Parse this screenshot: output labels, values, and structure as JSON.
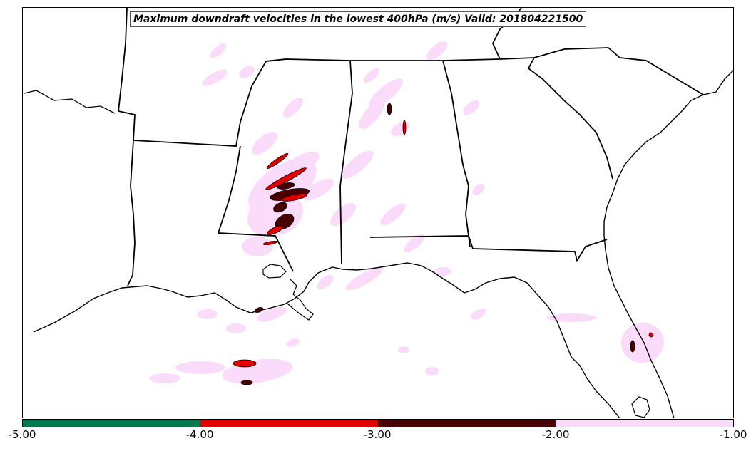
{
  "title": "Maximum downdraft velocities in the lowest 400hPa (m/s) Valid: 201804221500",
  "colorbar": {
    "ticks": [
      "-5.00",
      "-4.00",
      "-3.00",
      "-2.00",
      "-1.00"
    ],
    "bins": [
      {
        "range": [
          -5.0,
          -4.0
        ],
        "color": "#007a4d"
      },
      {
        "range": [
          -4.0,
          -3.0
        ],
        "color": "#e00000"
      },
      {
        "range": [
          -3.0,
          -2.0
        ],
        "color": "#4a0000"
      },
      {
        "range": [
          -2.0,
          -1.0
        ],
        "color": "#fadcfa"
      }
    ]
  },
  "colors": {
    "weak_downdraft": "#fadcfa",
    "moderate_downdraft": "#4a0000",
    "strong_downdraft": "#e00000",
    "boundaries": "#000000"
  }
}
